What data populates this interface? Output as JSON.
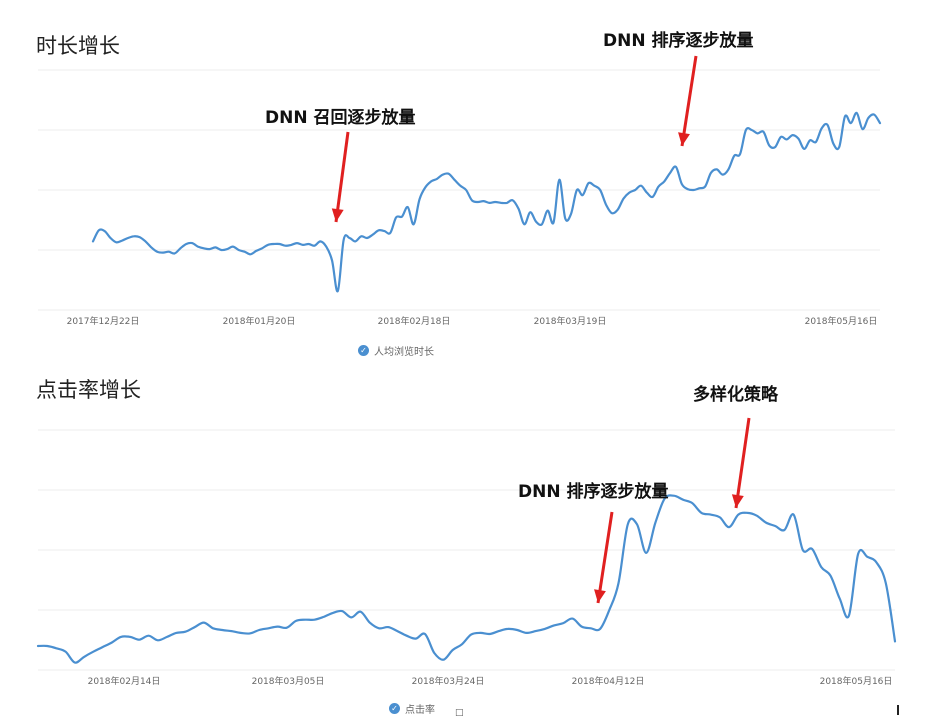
{
  "chart_data": [
    {
      "type": "line",
      "title": "时长增长",
      "x_ticks": [
        "2017年12月22日",
        "2018年01月20日",
        "2018年02月18日",
        "2018年03月19日",
        "2018年05月16日"
      ],
      "series": [
        {
          "name": "人均浏览时长",
          "color": "#4a8fd0",
          "values": [
            0.4,
            0.53,
            0.52,
            0.44,
            0.39,
            0.41,
            0.44,
            0.46,
            0.45,
            0.4,
            0.33,
            0.28,
            0.27,
            0.28,
            0.26,
            0.32,
            0.37,
            0.38,
            0.34,
            0.32,
            0.31,
            0.33,
            0.3,
            0.31,
            0.34,
            0.3,
            0.28,
            0.25,
            0.29,
            0.32,
            0.36,
            0.37,
            0.37,
            0.35,
            0.36,
            0.38,
            0.36,
            0.37,
            0.35,
            0.4,
            0.34,
            0.18,
            -0.18,
            0.42,
            0.44,
            0.4,
            0.46,
            0.44,
            0.48,
            0.53,
            0.52,
            0.5,
            0.68,
            0.69,
            0.8,
            0.6,
            0.89,
            1.03,
            1.1,
            1.13,
            1.18,
            1.19,
            1.12,
            1.05,
            1.0,
            0.88,
            0.86,
            0.87,
            0.85,
            0.86,
            0.85,
            0.85,
            0.88,
            0.78,
            0.6,
            0.74,
            0.63,
            0.6,
            0.76,
            0.62,
            1.12,
            0.67,
            0.72,
            1.0,
            0.94,
            1.08,
            1.05,
            1.0,
            0.83,
            0.73,
            0.77,
            0.9,
            0.97,
            1.0,
            1.05,
            0.97,
            0.92,
            1.04,
            1.1,
            1.2,
            1.27,
            1.07,
            1.01,
            1.0,
            1.02,
            1.04,
            1.2,
            1.24,
            1.18,
            1.24,
            1.4,
            1.42,
            1.7,
            1.7,
            1.66,
            1.68,
            1.52,
            1.5,
            1.62,
            1.59,
            1.64,
            1.6,
            1.48,
            1.58,
            1.56,
            1.72,
            1.76,
            1.54,
            1.5,
            1.86,
            1.78,
            1.9,
            1.71,
            1.84,
            1.88,
            1.78
          ]
        }
      ],
      "ylim": [
        -0.4,
        2.4
      ],
      "grid": true,
      "annotations": [
        "DNN 召回逐步放量",
        "DNN 排序逐步放量"
      ]
    },
    {
      "type": "line",
      "title": "点击率增长",
      "x_ticks": [
        "2018年02月14日",
        "2018年03月05日",
        "2018年03月24日",
        "2018年04月12日",
        "2018年05月16日"
      ],
      "series": [
        {
          "name": "点击率",
          "color": "#4a8fd0",
          "values": [
            0.42,
            0.42,
            0.38,
            0.32,
            0.13,
            0.23,
            0.32,
            0.4,
            0.48,
            0.58,
            0.58,
            0.53,
            0.6,
            0.52,
            0.58,
            0.65,
            0.67,
            0.75,
            0.83,
            0.73,
            0.7,
            0.68,
            0.65,
            0.64,
            0.7,
            0.73,
            0.76,
            0.74,
            0.86,
            0.88,
            0.88,
            0.93,
            1.0,
            1.03,
            0.92,
            1.02,
            0.83,
            0.73,
            0.75,
            0.68,
            0.6,
            0.55,
            0.63,
            0.3,
            0.18,
            0.35,
            0.45,
            0.62,
            0.65,
            0.63,
            0.68,
            0.72,
            0.7,
            0.65,
            0.68,
            0.72,
            0.78,
            0.82,
            0.9,
            0.76,
            0.73,
            0.72,
            1.05,
            1.52,
            2.55,
            2.55,
            2.05,
            2.58,
            3.0,
            3.05,
            2.98,
            2.92,
            2.75,
            2.72,
            2.67,
            2.5,
            2.72,
            2.75,
            2.7,
            2.58,
            2.52,
            2.45,
            2.72,
            2.1,
            2.12,
            1.8,
            1.65,
            1.25,
            0.95,
            2.03,
            1.98,
            1.88,
            1.52,
            0.5
          ]
        }
      ],
      "ylim": [
        0,
        4.2
      ],
      "grid": true,
      "annotations": [
        "DNN 排序逐步放量",
        "多样化策略"
      ]
    }
  ],
  "page_marks": {
    "small_square": "□"
  }
}
